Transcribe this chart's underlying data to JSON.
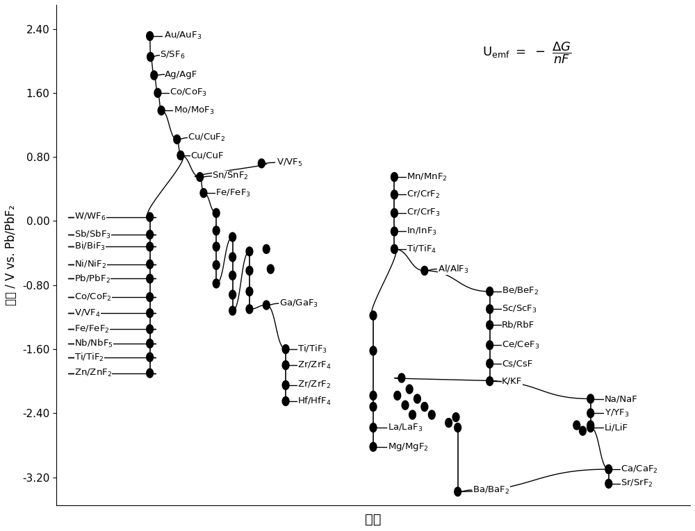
{
  "xlabel": "原料",
  "ylabel": "電位 / V vs. Pb/PbF₂",
  "ylim": [
    -3.55,
    2.7
  ],
  "xlim": [
    0,
    10.5
  ],
  "yticks": [
    -3.2,
    -2.4,
    -1.6,
    -0.8,
    0.0,
    0.8,
    1.6,
    2.4
  ],
  "ytick_labels": [
    "-3.20",
    "-2.40",
    "-1.60",
    "-0.80",
    "0.00",
    "0.80",
    "1.60",
    "2.40"
  ]
}
